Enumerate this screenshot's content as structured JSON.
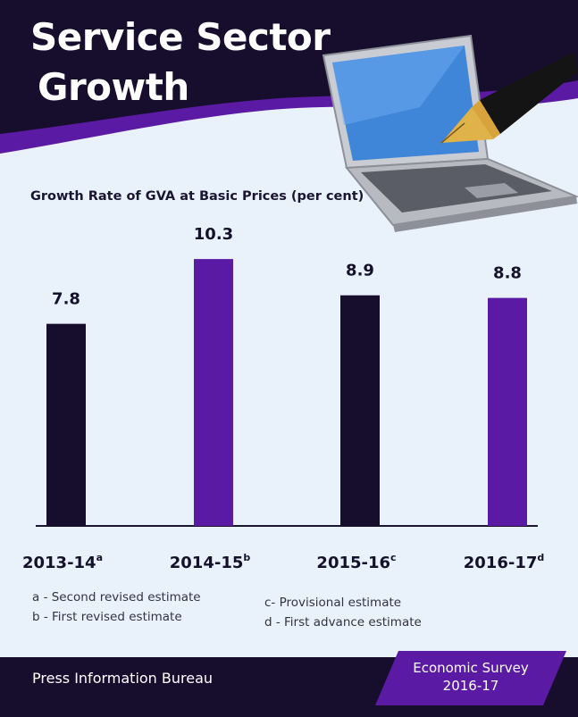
{
  "header": {
    "title_line1": "Service Sector",
    "title_line2": "Growth"
  },
  "chart_data": {
    "type": "bar",
    "title": "Growth Rate of GVA at Basic Prices (per cent)",
    "categories": [
      "2013-14",
      "2014-15",
      "2015-16",
      "2016-17"
    ],
    "category_superscripts": [
      "a",
      "b",
      "c",
      "d"
    ],
    "values": [
      7.8,
      10.3,
      8.9,
      8.8
    ],
    "value_labels": [
      "7.8",
      "10.3",
      "8.9",
      "8.8"
    ],
    "bar_colors": [
      "#170e2e",
      "#5b1aa3",
      "#170e2e",
      "#5b1aa3"
    ],
    "xlabel": "",
    "ylabel": "",
    "ylim": [
      0,
      11.2
    ],
    "grid": false
  },
  "notes": {
    "a": "a - Second revised estimate",
    "b": "b - First revised estimate",
    "c": "c- Provisional estimate",
    "d": "d - First advance estimate"
  },
  "footer": {
    "source": "Press Information Bureau",
    "publication_line1": "Economic Survey",
    "publication_line2": "2016-17"
  },
  "colors": {
    "background": "#e9f1fb",
    "dark_purple": "#170e2e",
    "accent_purple": "#5b1aa3"
  },
  "illustration": {
    "icons": [
      "laptop-icon",
      "fountain-pen-icon"
    ]
  }
}
